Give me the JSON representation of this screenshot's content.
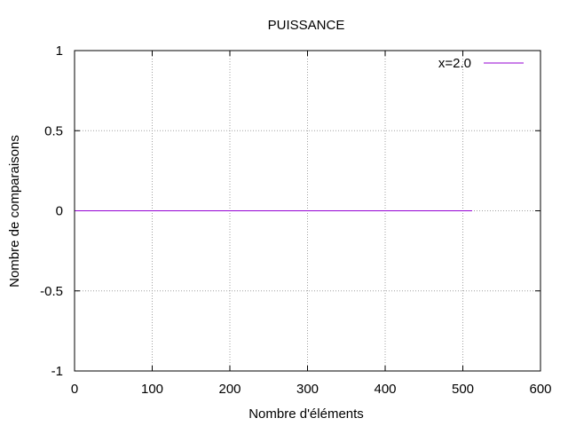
{
  "chart_data": {
    "type": "line",
    "title": "PUISSANCE",
    "xlabel": "Nombre d'éléments",
    "ylabel": "Nombre de comparaisons",
    "xlim": [
      0,
      600
    ],
    "ylim": [
      -1,
      1
    ],
    "xticks": [
      "0",
      "100",
      "200",
      "300",
      "400",
      "500",
      "600"
    ],
    "yticks": [
      "-1",
      "-0.5",
      "0",
      "0.5",
      "1"
    ],
    "grid": true,
    "legend_position": "top-right",
    "series": [
      {
        "name": "x=2.0",
        "color": "#9400d3",
        "x": [
          0,
          512
        ],
        "y": [
          0,
          0
        ]
      }
    ]
  }
}
